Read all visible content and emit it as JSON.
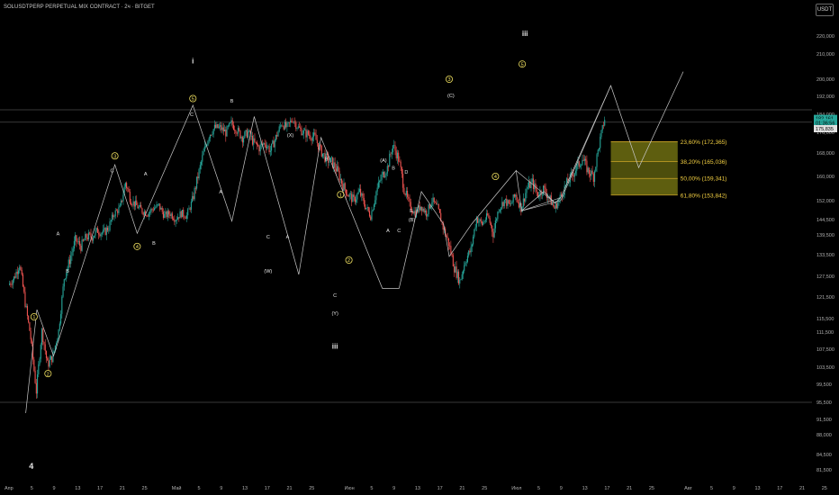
{
  "title": "SOLUSDTPERP PERPETUAL MIX CONTRACT · 2ч · BITGET",
  "currency": "USDT",
  "chart_data": {
    "type": "candlestick",
    "title": "SOLUSDTPERP PERPETUAL MIX CONTRACT · 2ч · BITGET",
    "ylim": [
      78.5,
      226
    ],
    "y_ticks": [
      220,
      210,
      200,
      192,
      184,
      176,
      168,
      160,
      152,
      144.5,
      139.5,
      133.5,
      127.5,
      121.5,
      115.5,
      111.5,
      107.5,
      103.5,
      99.5,
      95.5,
      91.5,
      88,
      84.5,
      81.5
    ],
    "y_tick_labels": [
      "220,000",
      "210,000",
      "200,000",
      "192,000",
      "184,000",
      "176,000",
      "168,000",
      "160,000",
      "152,000",
      "144,500",
      "139,500",
      "133,500",
      "127,500",
      "121,500",
      "115,500",
      "111,500",
      "107,500",
      "103,500",
      "99,500",
      "95,500",
      "91,500",
      "88,000",
      "84,500",
      "81,500"
    ],
    "x_ticks": [
      {
        "label": "Апр",
        "d": 0
      },
      {
        "label": "5",
        "d": 4
      },
      {
        "label": "9",
        "d": 8
      },
      {
        "label": "13",
        "d": 12
      },
      {
        "label": "17",
        "d": 16
      },
      {
        "label": "21",
        "d": 20
      },
      {
        "label": "25",
        "d": 24
      },
      {
        "label": "Май",
        "d": 30
      },
      {
        "label": "5",
        "d": 34
      },
      {
        "label": "9",
        "d": 38
      },
      {
        "label": "13",
        "d": 42
      },
      {
        "label": "17",
        "d": 46
      },
      {
        "label": "21",
        "d": 50
      },
      {
        "label": "25",
        "d": 54
      },
      {
        "label": "Июн",
        "d": 61
      },
      {
        "label": "5",
        "d": 65
      },
      {
        "label": "9",
        "d": 69
      },
      {
        "label": "13",
        "d": 73
      },
      {
        "label": "17",
        "d": 77
      },
      {
        "label": "21",
        "d": 81
      },
      {
        "label": "25",
        "d": 85
      },
      {
        "label": "Июл",
        "d": 91
      },
      {
        "label": "5",
        "d": 95
      },
      {
        "label": "9",
        "d": 99
      },
      {
        "label": "13",
        "d": 103
      },
      {
        "label": "17",
        "d": 107
      },
      {
        "label": "21",
        "d": 111
      },
      {
        "label": "25",
        "d": 115
      },
      {
        "label": "Авг",
        "d": 122
      },
      {
        "label": "5",
        "d": 126
      },
      {
        "label": "9",
        "d": 130
      },
      {
        "label": "13",
        "d": 134
      },
      {
        "label": "17",
        "d": 138
      },
      {
        "label": "21",
        "d": 142
      },
      {
        "label": "25",
        "d": 146
      },
      {
        "label": "2",
        "d": 150
      }
    ],
    "candles_close_path": [
      [
        0,
        125
      ],
      [
        1,
        127
      ],
      [
        2,
        131
      ],
      [
        3,
        120
      ],
      [
        4,
        110
      ],
      [
        5,
        98
      ],
      [
        6,
        112
      ],
      [
        7,
        104
      ],
      [
        8,
        106
      ],
      [
        9,
        112
      ],
      [
        10,
        127
      ],
      [
        11,
        132
      ],
      [
        12,
        138
      ],
      [
        13,
        136
      ],
      [
        14,
        139
      ],
      [
        15,
        139
      ],
      [
        16,
        141
      ],
      [
        17,
        140
      ],
      [
        18,
        142
      ],
      [
        19,
        147
      ],
      [
        20,
        149
      ],
      [
        21,
        158
      ],
      [
        22,
        152
      ],
      [
        23,
        150
      ],
      [
        24,
        148
      ],
      [
        25,
        147
      ],
      [
        26,
        149
      ],
      [
        27,
        150
      ],
      [
        28,
        146
      ],
      [
        29,
        147
      ],
      [
        30,
        145
      ],
      [
        31,
        147
      ],
      [
        32,
        146
      ],
      [
        33,
        152
      ],
      [
        34,
        160
      ],
      [
        35,
        168
      ],
      [
        36,
        175
      ],
      [
        37,
        178
      ],
      [
        38,
        178
      ],
      [
        39,
        176
      ],
      [
        40,
        180
      ],
      [
        41,
        177
      ],
      [
        42,
        174
      ],
      [
        43,
        176
      ],
      [
        44,
        172
      ],
      [
        45,
        170
      ],
      [
        46,
        172
      ],
      [
        47,
        169
      ],
      [
        48,
        174
      ],
      [
        49,
        180
      ],
      [
        50,
        178
      ],
      [
        51,
        182
      ],
      [
        52,
        178
      ],
      [
        53,
        176
      ],
      [
        54,
        175
      ],
      [
        55,
        174
      ],
      [
        56,
        169
      ],
      [
        57,
        166
      ],
      [
        58,
        165
      ],
      [
        59,
        162
      ],
      [
        60,
        157
      ],
      [
        61,
        154
      ],
      [
        62,
        152
      ],
      [
        63,
        155
      ],
      [
        64,
        150
      ],
      [
        65,
        146
      ],
      [
        66,
        155
      ],
      [
        67,
        160
      ],
      [
        68,
        163
      ],
      [
        69,
        171
      ],
      [
        70,
        166
      ],
      [
        71,
        156
      ],
      [
        72,
        150
      ],
      [
        73,
        147
      ],
      [
        74,
        150
      ],
      [
        75,
        147
      ],
      [
        76,
        152
      ],
      [
        77,
        149
      ],
      [
        78,
        142
      ],
      [
        79,
        137
      ],
      [
        80,
        130
      ],
      [
        81,
        126
      ],
      [
        82,
        132
      ],
      [
        83,
        135
      ],
      [
        84,
        145
      ],
      [
        85,
        143
      ],
      [
        86,
        146
      ],
      [
        87,
        140
      ],
      [
        88,
        149
      ],
      [
        89,
        152
      ],
      [
        90,
        150
      ],
      [
        91,
        154
      ],
      [
        92,
        149
      ],
      [
        93,
        156
      ],
      [
        94,
        158
      ],
      [
        95,
        154
      ],
      [
        96,
        156
      ],
      [
        97,
        153
      ],
      [
        98,
        149
      ],
      [
        99,
        153
      ],
      [
        100,
        157
      ],
      [
        101,
        160
      ],
      [
        102,
        163
      ],
      [
        103,
        166
      ],
      [
        104,
        162
      ],
      [
        105,
        160
      ],
      [
        106,
        171
      ],
      [
        107,
        182
      ]
    ],
    "fib_retracement": [
      {
        "label": "23,60% (172,365)",
        "level": 172.365,
        "color": "#6e6f12"
      },
      {
        "label": "38,20% (165,036)",
        "level": 165.036,
        "color": "#5a5c0e"
      },
      {
        "label": "50,00% (159,341)",
        "level": 159.341,
        "color": "#6e6f12"
      },
      {
        "label": "61,80% (153,842)",
        "level": 153.842,
        "color": "#5a5c0e"
      }
    ],
    "horizontal_levels": [
      186,
      180.5,
      95.5
    ],
    "price_tags": [
      {
        "label": "182,161",
        "value": 182.161,
        "color": "#26a69a"
      },
      {
        "label": "01:36:56",
        "value": 180.3,
        "color": "#26a69a"
      },
      {
        "label": "175,835",
        "value": 177.6,
        "color": "#e0e0e0"
      }
    ],
    "wave_path": [
      [
        3,
        93
      ],
      [
        5,
        118
      ],
      [
        8,
        106
      ],
      [
        19,
        164
      ],
      [
        23,
        140
      ],
      [
        33,
        188
      ],
      [
        40,
        144
      ],
      [
        44,
        183
      ],
      [
        52,
        128
      ],
      [
        56,
        174
      ],
      [
        67,
        124
      ],
      [
        70,
        124
      ],
      [
        74,
        155
      ],
      [
        78,
        143
      ],
      [
        79,
        133
      ],
      [
        83,
        143
      ],
      [
        91,
        162
      ],
      [
        92,
        148
      ],
      [
        96,
        155
      ],
      [
        98,
        151
      ],
      [
        99,
        153
      ],
      [
        108,
        197
      ],
      [
        113,
        163
      ],
      [
        121,
        203
      ]
    ],
    "triangle": [
      [
        91,
        162
      ],
      [
        96,
        155
      ],
      [
        92,
        148
      ],
      [
        98,
        151
      ],
      [
        99,
        153
      ]
    ],
    "labels": [
      {
        "text": "4",
        "d": 4,
        "v": 82,
        "circled": false,
        "size": 9
      },
      {
        "text": "1",
        "d": 4.5,
        "v": 116,
        "circled": true
      },
      {
        "text": "2",
        "d": 7,
        "v": 102,
        "circled": true
      },
      {
        "text": "A",
        "d": 8.8,
        "v": 140,
        "circled": false
      },
      {
        "text": "B",
        "d": 10.5,
        "v": 129,
        "circled": false
      },
      {
        "text": "3",
        "d": 19,
        "v": 167,
        "circled": true
      },
      {
        "text": "C",
        "d": 18.5,
        "v": 162,
        "circled": false
      },
      {
        "text": "A",
        "d": 24.5,
        "v": 161,
        "circled": false
      },
      {
        "text": "4",
        "d": 23,
        "v": 136,
        "circled": true
      },
      {
        "text": "B",
        "d": 26,
        "v": 137,
        "circled": false
      },
      {
        "text": "i",
        "d": 33,
        "v": 207,
        "circled": false,
        "size": 8
      },
      {
        "text": "5",
        "d": 33,
        "v": 191,
        "circled": true
      },
      {
        "text": "C",
        "d": 32.8,
        "v": 184,
        "circled": false
      },
      {
        "text": "B",
        "d": 40,
        "v": 190,
        "circled": false
      },
      {
        "text": "A",
        "d": 38,
        "v": 155,
        "circled": false
      },
      {
        "text": "(X)",
        "d": 50.5,
        "v": 175,
        "circled": false
      },
      {
        "text": "B",
        "d": 57,
        "v": 166,
        "circled": false
      },
      {
        "text": "C",
        "d": 46.5,
        "v": 139,
        "circled": false
      },
      {
        "text": "A",
        "d": 50,
        "v": 139,
        "circled": false
      },
      {
        "text": "(W)",
        "d": 46.5,
        "v": 129,
        "circled": false
      },
      {
        "text": "1",
        "d": 59.5,
        "v": 154,
        "circled": true
      },
      {
        "text": "2",
        "d": 61,
        "v": 132,
        "circled": true
      },
      {
        "text": "C",
        "d": 58.5,
        "v": 122,
        "circled": false
      },
      {
        "text": "(Y)",
        "d": 58.5,
        "v": 117,
        "circled": false
      },
      {
        "text": "iii",
        "d": 58.5,
        "v": 108,
        "circled": false,
        "size": 8
      },
      {
        "text": "(A)",
        "d": 67.2,
        "v": 165.5,
        "circled": false
      },
      {
        "text": "B",
        "d": 69,
        "v": 163,
        "circled": false
      },
      {
        "text": "A",
        "d": 68,
        "v": 141,
        "circled": false
      },
      {
        "text": "C",
        "d": 70,
        "v": 141,
        "circled": false
      },
      {
        "text": "D",
        "d": 71.3,
        "v": 161.5,
        "circled": false
      },
      {
        "text": "E",
        "d": 72.2,
        "v": 148,
        "circled": false
      },
      {
        "text": "(B)",
        "d": 72.3,
        "v": 144.5,
        "circled": false
      },
      {
        "text": "3",
        "d": 79,
        "v": 200,
        "circled": true
      },
      {
        "text": "(C)",
        "d": 79.3,
        "v": 192.5,
        "circled": false
      },
      {
        "text": "4",
        "d": 87.3,
        "v": 160,
        "circled": true
      },
      {
        "text": "5",
        "d": 92.1,
        "v": 206,
        "circled": true
      },
      {
        "text": "iii",
        "d": 92.6,
        "v": 221,
        "circled": false,
        "size": 8
      }
    ],
    "colors": {
      "up": "#26a69a",
      "down": "#ef5350",
      "background": "#000000",
      "wave": "#c8c8c8",
      "grid_level": "#5a5a5a",
      "fib_text": "#f5d142"
    }
  }
}
